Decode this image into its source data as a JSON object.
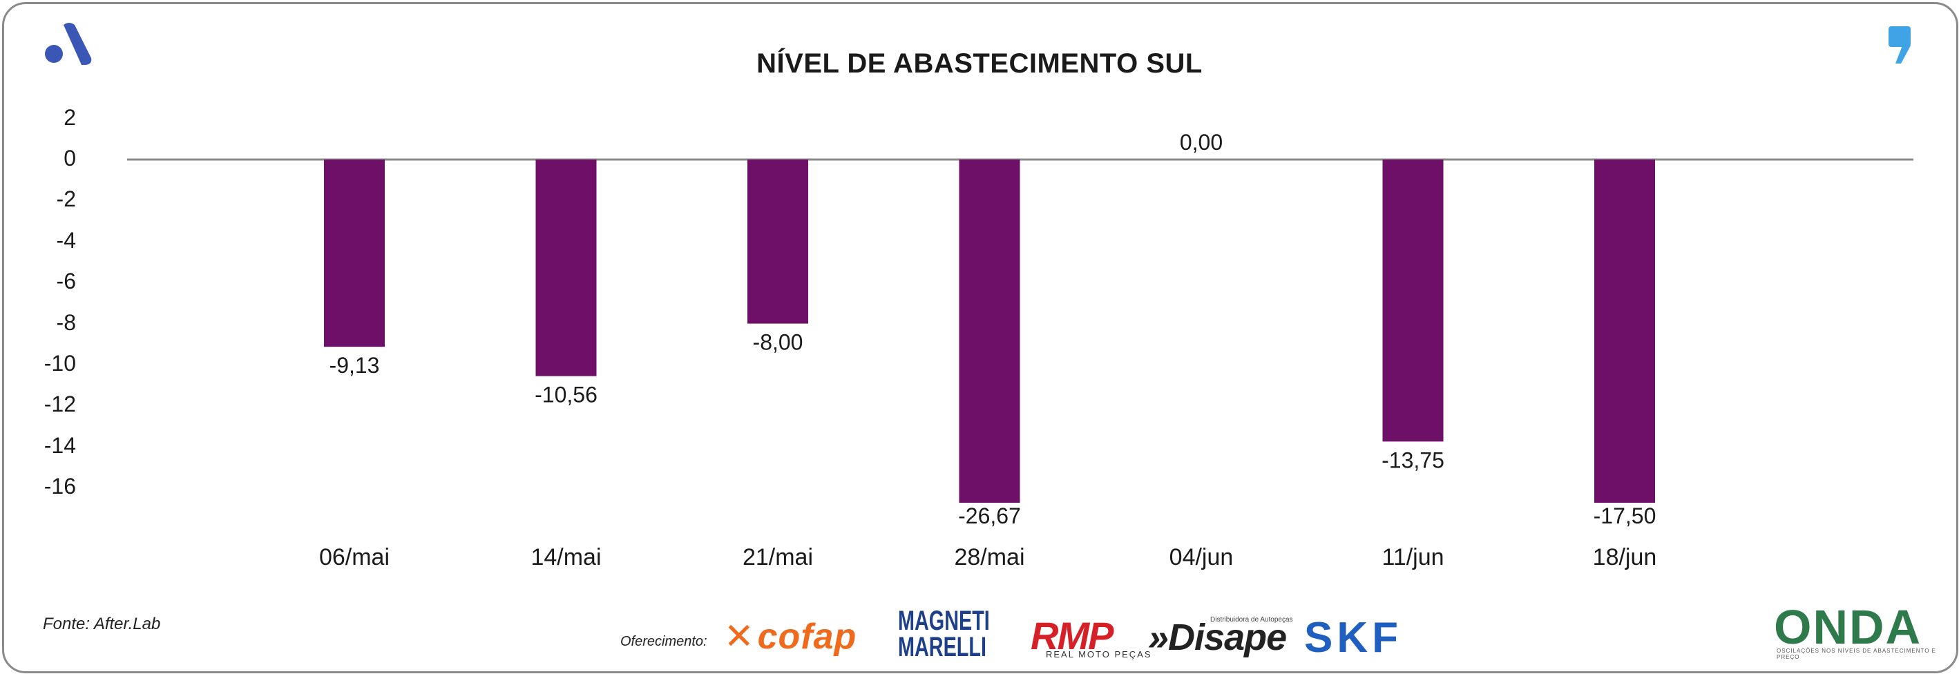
{
  "chart_data": {
    "type": "bar",
    "title": "NÍVEL DE ABASTECIMENTO SUL",
    "categories": [
      "06/mai",
      "14/mai",
      "21/mai",
      "28/mai",
      "04/jun",
      "11/jun",
      "18/jun"
    ],
    "values": [
      -9.13,
      -10.56,
      -8.0,
      -26.67,
      0.0,
      -13.75,
      -17.5
    ],
    "value_labels": [
      "-9,13",
      "-10,56",
      "-8,00",
      "-26,67",
      "0,00",
      "-13,75",
      "-17,50"
    ],
    "yticks": [
      "2",
      "0",
      "-2",
      "-4",
      "-6",
      "-8",
      "-10",
      "-12",
      "-14",
      "-16"
    ],
    "ylim": [
      -16,
      2
    ],
    "bar_color": "#6e0f68",
    "grid": false,
    "legend": "none"
  },
  "source": "Fonte: After.Lab",
  "sponsors_label": "Oferecimento:",
  "sponsors": {
    "cofap": "cofap",
    "magneti": "MAGNETI MARELLI",
    "rmp": "RMP",
    "rmp_sub": "REAL MOTO PEÇAS",
    "disape": "»Disape",
    "disape_sub": "Distribuidora de Autopeças",
    "skf": "SKF",
    "onda": "ONDA",
    "onda_sub": "OSCILAÇÕES NOS NÍVEIS DE ABASTECIMENTO E PREÇO"
  },
  "icons": {
    "brand_logo": "after-lab-logo-icon",
    "quote_logo": "quote-mark-icon"
  },
  "colors": {
    "accent_blue": "#3fa3e6",
    "logo_blue": "#3b57b5"
  }
}
